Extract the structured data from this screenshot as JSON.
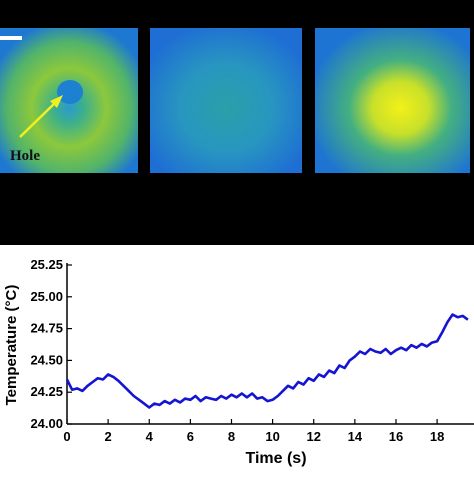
{
  "chart_data": {
    "type": "line",
    "annotations": [
      "Hole"
    ],
    "xlabel": "Time (s)",
    "ylabel": "Temperature (°C)",
    "x": [
      0,
      0.25,
      0.5,
      0.75,
      1,
      1.25,
      1.5,
      1.75,
      2,
      2.25,
      2.5,
      2.75,
      3,
      3.25,
      3.5,
      3.75,
      4,
      4.25,
      4.5,
      4.75,
      5,
      5.25,
      5.5,
      5.75,
      6,
      6.25,
      6.5,
      6.75,
      7,
      7.25,
      7.5,
      7.75,
      8,
      8.25,
      8.5,
      8.75,
      9,
      9.25,
      9.5,
      9.75,
      10,
      10.25,
      10.5,
      10.75,
      11,
      11.25,
      11.5,
      11.75,
      12,
      12.25,
      12.5,
      12.75,
      13,
      13.25,
      13.5,
      13.75,
      14,
      14.25,
      14.5,
      14.75,
      15,
      15.25,
      15.5,
      15.75,
      16,
      16.25,
      16.5,
      16.75,
      17,
      17.25,
      17.5,
      17.75,
      18,
      18.25,
      18.5,
      18.75,
      19,
      19.25,
      19.5
    ],
    "series": [
      {
        "name": "Temperature",
        "color": "#1414d2",
        "values": [
          24.35,
          24.27,
          24.28,
          24.26,
          24.3,
          24.33,
          24.36,
          24.35,
          24.39,
          24.37,
          24.34,
          24.3,
          24.26,
          24.22,
          24.19,
          24.16,
          24.13,
          24.16,
          24.15,
          24.18,
          24.16,
          24.19,
          24.17,
          24.2,
          24.19,
          24.22,
          24.18,
          24.21,
          24.2,
          24.19,
          24.22,
          24.2,
          24.23,
          24.21,
          24.24,
          24.21,
          24.24,
          24.2,
          24.21,
          24.18,
          24.19,
          24.22,
          24.26,
          24.3,
          24.28,
          24.33,
          24.31,
          24.36,
          24.34,
          24.39,
          24.37,
          24.42,
          24.4,
          24.46,
          24.44,
          24.5,
          24.53,
          24.57,
          24.55,
          24.59,
          24.57,
          24.56,
          24.59,
          24.55,
          24.58,
          24.6,
          24.58,
          24.62,
          24.6,
          24.63,
          24.61,
          24.64,
          24.65,
          24.72,
          24.8,
          24.86,
          24.84,
          24.85,
          24.82
        ]
      }
    ],
    "xlim": [
      0,
      19.6
    ],
    "ylim": [
      24.0,
      25.25
    ],
    "xticks": [
      0,
      2,
      4,
      6,
      8,
      10,
      12,
      14,
      16,
      18
    ],
    "yticks": [
      {
        "value": 24.0,
        "label": "24.00"
      },
      {
        "value": 24.25,
        "label": "24.25"
      },
      {
        "value": 24.5,
        "label": "24.50"
      },
      {
        "value": 24.75,
        "label": "24.75"
      },
      {
        "value": 25.0,
        "label": "25.00"
      },
      {
        "value": 25.25,
        "label": "25.25"
      }
    ]
  }
}
